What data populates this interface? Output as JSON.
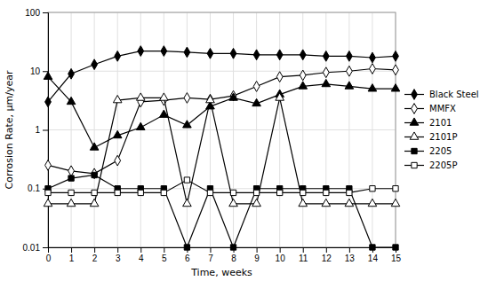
{
  "chart_data": {
    "type": "line",
    "xlabel": "Time, weeks",
    "ylabel": "Corrosion Rate, μm/year",
    "x": [
      0,
      1,
      2,
      3,
      4,
      5,
      6,
      7,
      8,
      9,
      10,
      11,
      12,
      13,
      14,
      15
    ],
    "xlim": [
      0,
      15
    ],
    "xticks": [
      0,
      1,
      2,
      3,
      4,
      5,
      6,
      7,
      8,
      9,
      10,
      11,
      12,
      13,
      14,
      15
    ],
    "ylim": [
      0.01,
      100
    ],
    "yticks": [
      0.01,
      0.1,
      1,
      10,
      100
    ],
    "log": "y",
    "grid": true,
    "legend": "right",
    "series": [
      {
        "name": "Black Steel",
        "color": "black",
        "marker": "diamond",
        "line_style": "solid",
        "values": [
          3.0,
          9.0,
          13.0,
          18.0,
          22.0,
          22.0,
          21.0,
          20.0,
          20.0,
          19.0,
          19.0,
          19.0,
          18.0,
          18.0,
          17.0,
          18.0
        ]
      },
      {
        "name": "MMFX",
        "color": "black",
        "marker": "open-diamond",
        "line_style": "solid",
        "values": [
          0.25,
          0.2,
          0.18,
          0.3,
          3.0,
          3.2,
          3.5,
          3.3,
          3.8,
          5.5,
          8.0,
          8.5,
          9.5,
          10.0,
          11.0,
          10.5
        ]
      },
      {
        "name": "2101",
        "color": "black",
        "marker": "triangle",
        "line_style": "solid",
        "values": [
          8.0,
          3.0,
          0.5,
          0.8,
          1.1,
          1.8,
          1.2,
          2.5,
          3.5,
          2.8,
          4.0,
          5.5,
          6.0,
          5.5,
          5.0,
          5.0
        ]
      },
      {
        "name": "2101P",
        "color": "black",
        "marker": "open-triangle",
        "line_style": "solid",
        "values": [
          0.055,
          0.055,
          0.055,
          3.2,
          3.5,
          3.5,
          0.055,
          3.2,
          0.055,
          0.055,
          3.5,
          0.055,
          0.055,
          0.055,
          0.055,
          0.055
        ]
      },
      {
        "name": "2205",
        "color": "black",
        "marker": "square",
        "line_style": "solid",
        "values": [
          0.1,
          0.15,
          0.17,
          0.1,
          0.1,
          0.1,
          0.01,
          0.1,
          0.01,
          0.1,
          0.1,
          0.1,
          0.1,
          0.1,
          0.01,
          0.01
        ]
      },
      {
        "name": "2205P",
        "color": "black",
        "marker": "open-square",
        "line_style": "solid",
        "values": [
          0.085,
          0.085,
          0.085,
          0.085,
          0.085,
          0.085,
          0.14,
          0.085,
          0.085,
          0.085,
          0.085,
          0.085,
          0.085,
          0.085,
          0.1,
          0.1
        ]
      }
    ]
  }
}
